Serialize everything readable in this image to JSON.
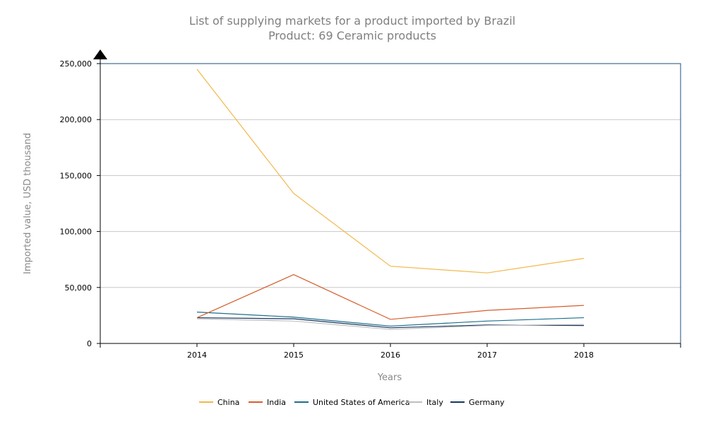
{
  "chart_data": {
    "type": "line",
    "title": "List of supplying markets for a product imported by Brazil",
    "subtitle": "Product: 69 Ceramic products",
    "xlabel": "Years",
    "ylabel": "Imported value, USD thousand",
    "categories": [
      "2014",
      "2015",
      "2016",
      "2017",
      "2018"
    ],
    "ylim": [
      0,
      250000
    ],
    "yticks": [
      0,
      50000,
      100000,
      150000,
      200000,
      250000
    ],
    "ytick_labels": [
      "0",
      "50,000",
      "100,000",
      "150,000",
      "200,000",
      "250,000"
    ],
    "grid": true,
    "legend_position": "bottom",
    "series": [
      {
        "name": "China",
        "color": "#F2B84B",
        "values": [
          245000,
          134000,
          69000,
          63000,
          76000
        ]
      },
      {
        "name": "India",
        "color": "#D35F2F",
        "values": [
          23000,
          61500,
          21500,
          29500,
          34000
        ]
      },
      {
        "name": "United States of America",
        "color": "#1F6E8C",
        "values": [
          28000,
          23500,
          15500,
          20000,
          23000
        ]
      },
      {
        "name": "Italy",
        "color": "#BFBFBF",
        "values": [
          22000,
          20000,
          12500,
          16000,
          17000
        ]
      },
      {
        "name": "Germany",
        "color": "#17375E",
        "values": [
          23000,
          22000,
          14000,
          16500,
          16000
        ]
      }
    ]
  }
}
